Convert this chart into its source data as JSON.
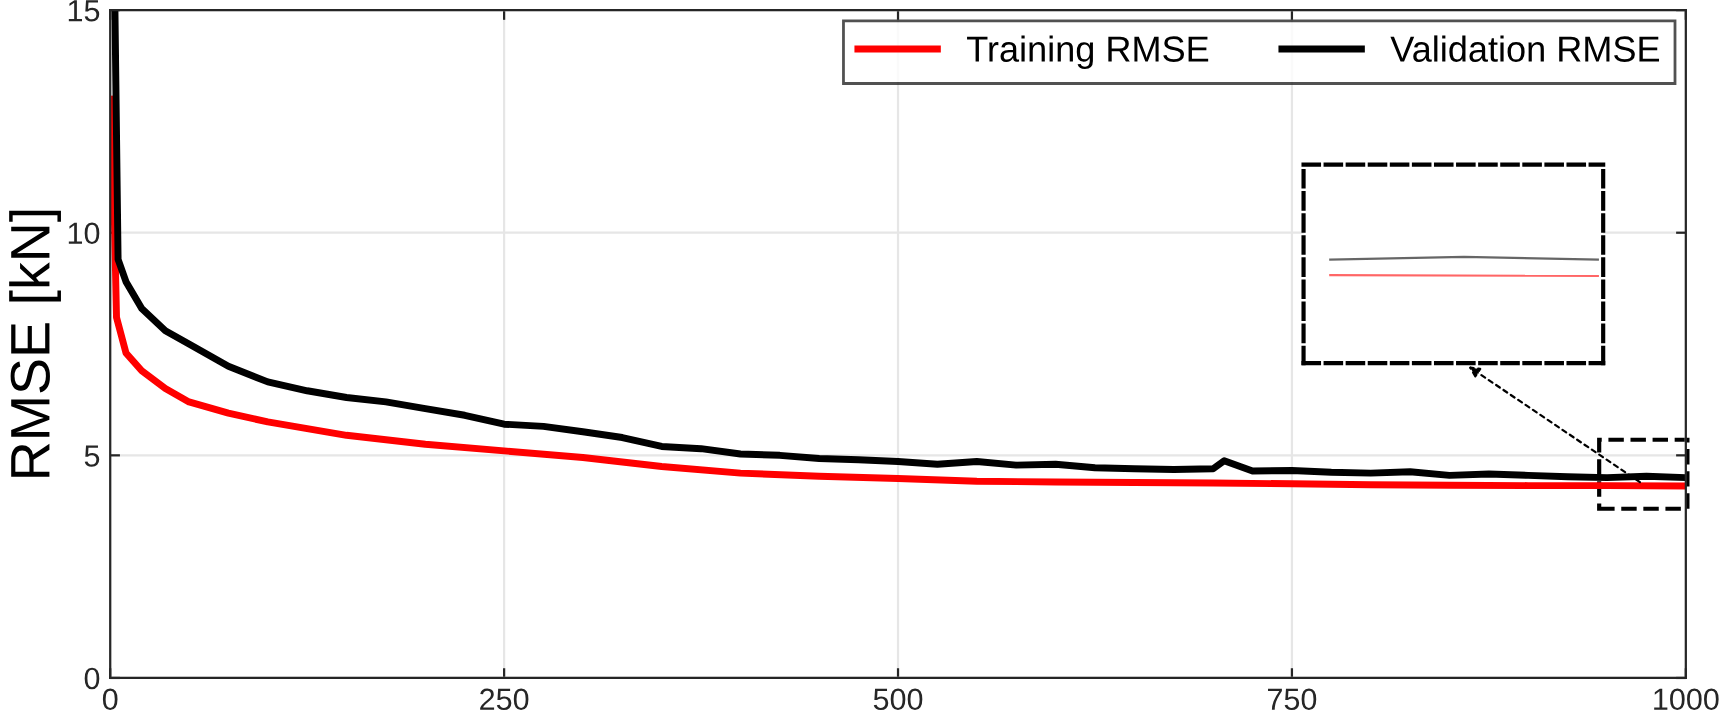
{
  "chart_data": {
    "type": "line",
    "ylabel": "RMSE [kN]",
    "xlim": [
      0,
      1000
    ],
    "ylim": [
      0,
      15
    ],
    "xticks": [
      0,
      250,
      500,
      750,
      1000
    ],
    "yticks": [
      0,
      5,
      10,
      15
    ],
    "grid": true,
    "legend": "top right",
    "line_style": "solid",
    "marker": "none",
    "series": [
      {
        "name": "Training RMSE",
        "color": "#ff0000",
        "x": [
          1,
          4,
          10,
          20,
          35,
          50,
          75,
          100,
          150,
          200,
          250,
          300,
          350,
          400,
          450,
          500,
          550,
          600,
          650,
          700,
          750,
          800,
          850,
          900,
          950,
          1000
        ],
        "values": [
          13.0,
          8.1,
          7.3,
          6.9,
          6.5,
          6.2,
          5.95,
          5.75,
          5.45,
          5.25,
          5.1,
          4.95,
          4.75,
          4.6,
          4.53,
          4.48,
          4.42,
          4.4,
          4.39,
          4.38,
          4.36,
          4.34,
          4.33,
          4.32,
          4.32,
          4.31
        ]
      },
      {
        "name": "Validation RMSE",
        "color": "#000000",
        "x": [
          3,
          5,
          10,
          20,
          35,
          50,
          75,
          100,
          125,
          150,
          175,
          200,
          225,
          250,
          275,
          300,
          325,
          350,
          375,
          400,
          425,
          450,
          475,
          500,
          525,
          550,
          575,
          600,
          625,
          650,
          675,
          700,
          707,
          725,
          750,
          775,
          800,
          825,
          850,
          875,
          900,
          925,
          950,
          975,
          1000
        ],
        "values": [
          15.0,
          9.4,
          8.9,
          8.3,
          7.8,
          7.5,
          7.0,
          6.65,
          6.45,
          6.3,
          6.2,
          6.05,
          5.9,
          5.7,
          5.65,
          5.53,
          5.4,
          5.2,
          5.15,
          5.03,
          5.0,
          4.93,
          4.9,
          4.86,
          4.8,
          4.86,
          4.78,
          4.8,
          4.72,
          4.7,
          4.68,
          4.7,
          4.88,
          4.65,
          4.66,
          4.62,
          4.6,
          4.63,
          4.55,
          4.58,
          4.55,
          4.52,
          4.5,
          4.53,
          4.5
        ]
      }
    ]
  }
}
